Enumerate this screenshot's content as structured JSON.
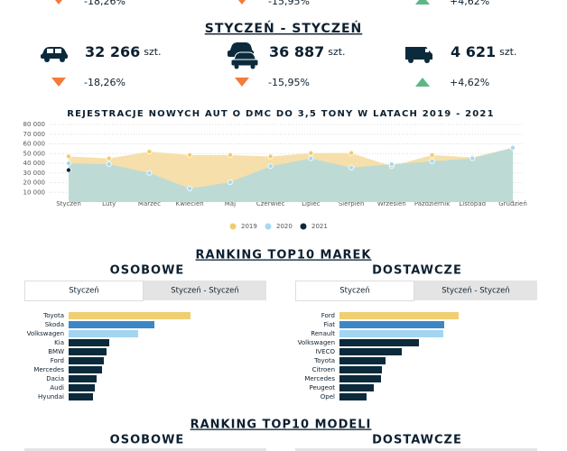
{
  "top_row": [
    {
      "change": "-18,26%",
      "direction": "down"
    },
    {
      "change": "-15,95%",
      "direction": "down"
    },
    {
      "change": "+4,62%",
      "direction": "up"
    }
  ],
  "section_title": "STYCZEŃ - STYCZEŃ",
  "kpis": [
    {
      "value": "32 266",
      "unit": "szt.",
      "change": "-18,26%",
      "direction": "down"
    },
    {
      "value": "36 887",
      "unit": "szt.",
      "change": "-15,95%",
      "direction": "down"
    },
    {
      "value": "4 621",
      "unit": "szt.",
      "change": "+4,62%",
      "direction": "up"
    }
  ],
  "chart_data": [
    {
      "type": "area",
      "title": "REJESTRACJE NOWYCH AUT O DMC DO 3,5 TONY W LATACH 2019 - 2021",
      "categories": [
        "Styczeń",
        "Luty",
        "Marzec",
        "Kwiecień",
        "Maj",
        "Czerwiec",
        "Lipiec",
        "Sierpień",
        "Wrzesień",
        "Październik",
        "Listopad",
        "Grudzień"
      ],
      "series": [
        {
          "name": "2019",
          "color": "#f1cb6e",
          "fill": "#f5dca2",
          "values": [
            47000,
            45000,
            52000,
            48500,
            48500,
            47000,
            50500,
            50500,
            37000,
            48500,
            46000,
            56000
          ]
        },
        {
          "name": "2020",
          "color": "#a6d9f0",
          "fill": "#b7dad8",
          "values": [
            40000,
            39000,
            30000,
            14000,
            20500,
            37000,
            45000,
            35500,
            39000,
            42000,
            45000,
            56000
          ]
        },
        {
          "name": "2021",
          "color": "#0b2a3c",
          "fill": null,
          "values": [
            33000,
            null,
            null,
            null,
            null,
            null,
            null,
            null,
            null,
            null,
            null,
            null
          ]
        }
      ],
      "ylim": [
        0,
        80000
      ],
      "yticks": [
        {
          "value": 10000,
          "label": "10 000"
        },
        {
          "value": 20000,
          "label": "20 000"
        },
        {
          "value": 30000,
          "label": "30 000"
        },
        {
          "value": 40000,
          "label": "40 000"
        },
        {
          "value": 50000,
          "label": "50 000"
        },
        {
          "value": 60000,
          "label": "60 000"
        },
        {
          "value": 70000,
          "label": "70 000"
        },
        {
          "value": 80000,
          "label": "80 000"
        }
      ],
      "grid": true,
      "legend": "bottom"
    },
    {
      "type": "bar",
      "orientation": "horizontal",
      "categories": [
        "Toyota",
        "Skoda",
        "Volkswagen",
        "Kia",
        "BMW",
        "Ford",
        "Mercedes",
        "Dacia",
        "Audi",
        "Hyundai"
      ],
      "values": [
        135,
        95,
        77,
        45,
        42,
        39,
        37,
        31,
        29,
        27
      ],
      "colors": [
        "#f0cf72",
        "#3d87c6",
        "#a3d4f1",
        "#0b2a3c",
        "#0b2a3c",
        "#0b2a3c",
        "#0b2a3c",
        "#0b2a3c",
        "#0b2a3c",
        "#0b2a3c"
      ],
      "xlim": [
        0,
        135
      ]
    },
    {
      "type": "bar",
      "orientation": "horizontal",
      "categories": [
        "Ford",
        "Fiat",
        "Renault",
        "Volkswagen",
        "IVECO",
        "Toyota",
        "Citroen",
        "Mercedes",
        "Peugeot",
        "Opel"
      ],
      "values": [
        132,
        116,
        115,
        88,
        69,
        51,
        47,
        46,
        38,
        30
      ],
      "colors": [
        "#f0cf72",
        "#3d87c6",
        "#a3d4f1",
        "#0b2a3c",
        "#0b2a3c",
        "#0b2a3c",
        "#0b2a3c",
        "#0b2a3c",
        "#0b2a3c",
        "#0b2a3c"
      ],
      "xlim": [
        0,
        135
      ]
    }
  ],
  "ranking_brands": {
    "title": "RANKING TOP10 MAREK",
    "left_title": "OSOBOWE",
    "right_title": "DOSTAWCZE",
    "tabs": [
      "Styczeń",
      "Styczeń - Styczeń"
    ]
  },
  "ranking_models": {
    "title": "RANKING TOP10 MODELI",
    "left_title": "OSOBOWE",
    "right_title": "DOSTAWCZE"
  }
}
